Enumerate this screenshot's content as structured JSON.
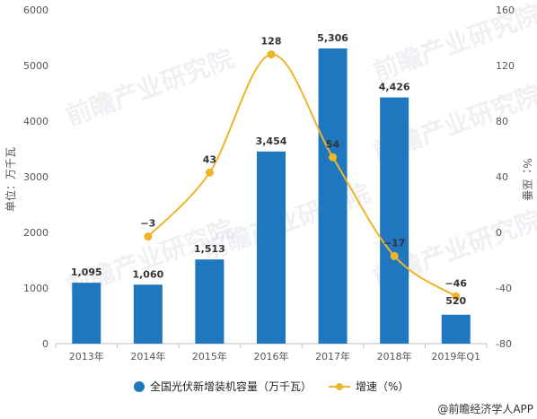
{
  "chart_data": {
    "type": "bar+line",
    "categories": [
      "2013年",
      "2014年",
      "2015年",
      "2016年",
      "2017年",
      "2018年",
      "2019年Q1"
    ],
    "series": [
      {
        "name": "全国光伏新增装机容量（万千瓦）",
        "type": "bar",
        "axis": "left",
        "values": [
          1095,
          1060,
          1513,
          3454,
          5306,
          4426,
          520
        ],
        "labels": [
          "1,095",
          "1,060",
          "1,513",
          "3,454",
          "5,306",
          "4,426",
          "520"
        ],
        "color": "#1f77c0"
      },
      {
        "name": "增速（%）",
        "type": "line",
        "axis": "right",
        "values": [
          null,
          -3,
          43,
          128,
          54,
          -17,
          -46
        ],
        "labels": [
          "",
          "−3",
          "43",
          "128",
          "54",
          "−17",
          "−46"
        ],
        "color": "#f0b429"
      }
    ],
    "y_left": {
      "label": "单位：万千瓦",
      "ylim": [
        0,
        6000
      ],
      "ticks": [
        0,
        1000,
        2000,
        3000,
        4000,
        5000,
        6000
      ]
    },
    "y_right": {
      "label": "%：巫垂",
      "ylim": [
        -80,
        160
      ],
      "ticks": [
        -80,
        -40,
        0,
        40,
        80,
        120,
        160
      ]
    },
    "legend_position": "bottom",
    "grid": false,
    "title": ""
  },
  "watermark": "前瞻产业研究院",
  "credit": "@前瞻经济学人APP"
}
